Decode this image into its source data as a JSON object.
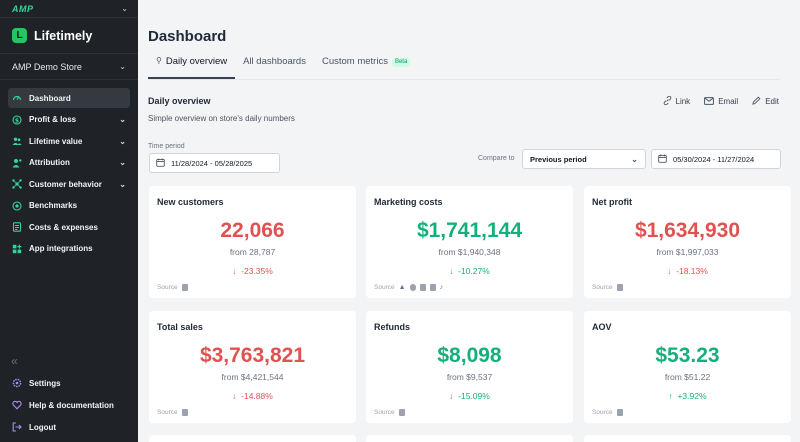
{
  "sidebar": {
    "org_logo": "AMP",
    "brand": "Lifetimely",
    "brand_letter": "L",
    "store": "AMP Demo Store",
    "items": [
      {
        "label": "Dashboard"
      },
      {
        "label": "Profit & loss"
      },
      {
        "label": "Lifetime value"
      },
      {
        "label": "Attribution"
      },
      {
        "label": "Customer behavior"
      },
      {
        "label": "Benchmarks"
      },
      {
        "label": "Costs & expenses"
      },
      {
        "label": "App integrations"
      }
    ],
    "bottom_items": [
      {
        "label": "Settings"
      },
      {
        "label": "Help & documentation"
      },
      {
        "label": "Logout"
      }
    ]
  },
  "page": {
    "title": "Dashboard",
    "tabs": [
      {
        "label": "Daily overview"
      },
      {
        "label": "All dashboards"
      },
      {
        "label": "Custom metrics"
      }
    ],
    "beta": "Beta",
    "section_title": "Daily overview",
    "section_subtitle": "Simple overview on store's daily numbers",
    "actions": {
      "link": "Link",
      "email": "Email",
      "edit": "Edit"
    },
    "time_period_label": "Time period",
    "time_period": "11/28/2024 - 05/28/2025",
    "compare_label": "Compare to",
    "compare_select": "Previous period",
    "compare_period": "05/30/2024 - 11/27/2024"
  },
  "cards": [
    {
      "title": "New customers",
      "value": "22,066",
      "from": "from 28,787",
      "change": "-23.35%",
      "source": "Source"
    },
    {
      "title": "Marketing costs",
      "value": "$1,741,144",
      "from": "from $1,940,348",
      "change": "-10.27%",
      "source": "Source"
    },
    {
      "title": "Net profit",
      "value": "$1,634,930",
      "from": "from $1,997,033",
      "change": "-18.13%",
      "source": "Source"
    },
    {
      "title": "Total sales",
      "value": "$3,763,821",
      "from": "from $4,421,544",
      "change": "-14.88%",
      "source": "Source"
    },
    {
      "title": "Refunds",
      "value": "$8,098",
      "from": "from $9,537",
      "change": "-15.09%",
      "source": "Source"
    },
    {
      "title": "AOV",
      "value": "$53.23",
      "from": "from $51.22",
      "change": "+3.92%",
      "source": "Source"
    }
  ],
  "colors": {
    "accent": "#34d399",
    "negative": "#e05252",
    "positive": "#14b07a",
    "sidebar_bg": "#1f2327"
  }
}
